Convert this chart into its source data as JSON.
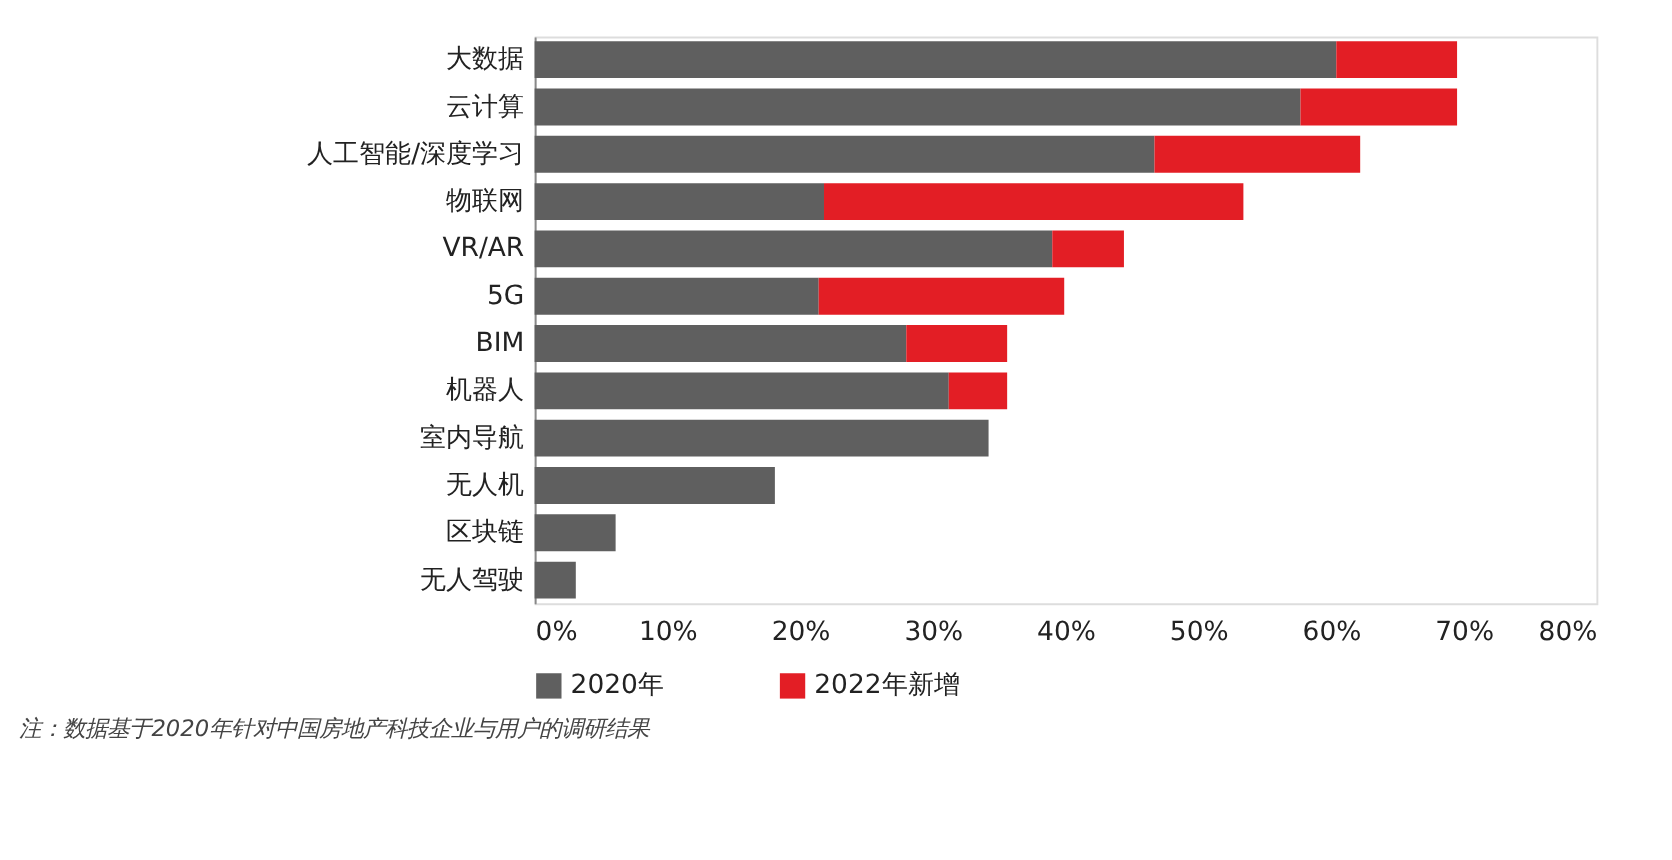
{
  "chart_data": {
    "type": "bar",
    "orientation": "horizontal",
    "stacked": true,
    "categories": [
      "大数据",
      "云计算",
      "人工智能/深度学习",
      "物联网",
      "VR/AR",
      "5G",
      "BIM",
      "机器人",
      "室内导航",
      "无人机",
      "区块链",
      "无人驾驶"
    ],
    "series": [
      {
        "name": "2020年",
        "color": "#5f5f5f",
        "values": [
          60.4,
          57.7,
          46.7,
          21.8,
          39.0,
          21.4,
          28.0,
          31.2,
          34.2,
          18.1,
          6.1,
          3.1
        ]
      },
      {
        "name": "2022年新增",
        "color": "#e31e25",
        "values": [
          9.1,
          11.8,
          15.5,
          31.6,
          5.4,
          18.5,
          7.6,
          4.4,
          null,
          null,
          null,
          null
        ]
      }
    ],
    "xlim": [
      0,
      80
    ],
    "xticks": [
      {
        "value": 0,
        "label": "0%"
      },
      {
        "value": 10,
        "label": "10%"
      },
      {
        "value": 20,
        "label": "20%"
      },
      {
        "value": 30,
        "label": "30%"
      },
      {
        "value": 40,
        "label": "40%"
      },
      {
        "value": 50,
        "label": "50%"
      },
      {
        "value": 60,
        "label": "60%"
      },
      {
        "value": 70,
        "label": "70%"
      },
      {
        "value": 80,
        "label": "80%"
      }
    ],
    "grid": false,
    "legend": "bottom left",
    "annotations": [
      "注：数据基于2020年针对中国房地产科技企业与用户的调研结果"
    ]
  }
}
